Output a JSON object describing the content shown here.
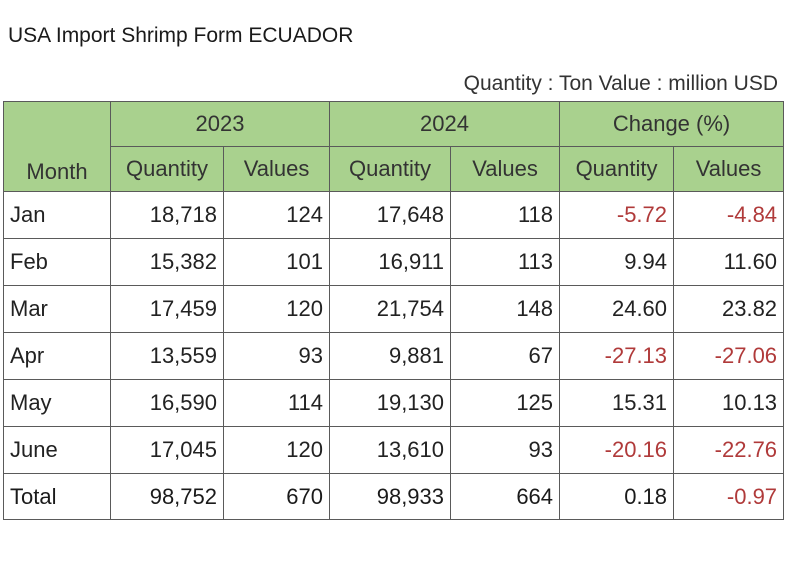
{
  "title": "USA Import Shrimp Form ECUADOR",
  "unit_note": "Quantity : Ton Value : million USD",
  "header": {
    "month": "Month",
    "years": [
      "2023",
      "2024",
      "Change (%)"
    ],
    "sub": [
      "Quantity",
      "Values",
      "Quantity",
      "Values",
      "Quantity",
      "Values"
    ]
  },
  "rows": [
    {
      "month": "Jan",
      "cells": [
        "18,718",
        "124",
        "17,648",
        "118",
        "-5.72",
        "-4.84"
      ]
    },
    {
      "month": "Feb",
      "cells": [
        "15,382",
        "101",
        "16,911",
        "113",
        "9.94",
        "11.60"
      ]
    },
    {
      "month": "Mar",
      "cells": [
        "17,459",
        "120",
        "21,754",
        "148",
        "24.60",
        "23.82"
      ]
    },
    {
      "month": "Apr",
      "cells": [
        "13,559",
        "93",
        "9,881",
        "67",
        "-27.13",
        "-27.06"
      ]
    },
    {
      "month": "May",
      "cells": [
        "16,590",
        "114",
        "19,130",
        "125",
        "15.31",
        "10.13"
      ]
    },
    {
      "month": "June",
      "cells": [
        "17,045",
        "120",
        "13,610",
        "93",
        "-20.16",
        "-22.76"
      ]
    }
  ],
  "total": {
    "month": "Total",
    "cells": [
      "98,752",
      "670",
      "98,933",
      "664",
      "0.18",
      "-0.97"
    ]
  },
  "colors": {
    "header_bg": "#a9d18e",
    "negative": "#b03a3a"
  }
}
